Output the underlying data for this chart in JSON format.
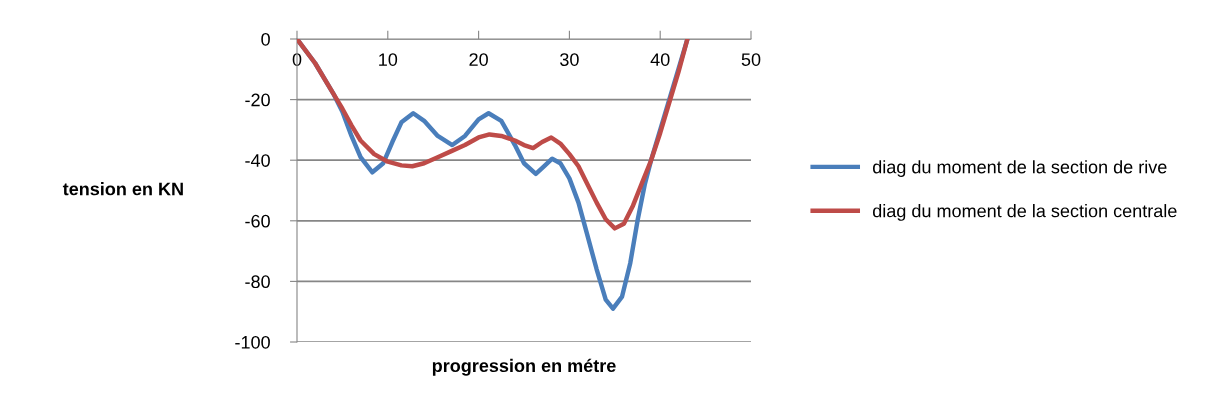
{
  "chart_data": {
    "type": "line",
    "xlabel": "progression en métre",
    "ylabel": "tension en KN",
    "xlim": [
      0,
      50
    ],
    "xticks": [
      0,
      10,
      20,
      30,
      40,
      50
    ],
    "ylim": [
      -100,
      0
    ],
    "yticks": [
      -100,
      -80,
      -60,
      -40,
      -20,
      0
    ],
    "grid": "y",
    "legend": "right",
    "marker": "none",
    "line_style": "solid",
    "series": [
      {
        "name": "diag du moment de la section de rive",
        "color": "#4a7ebb",
        "x": [
          0,
          2,
          4,
          5,
          6,
          7,
          8.3,
          9.5,
          10.5,
          11.5,
          12.8,
          14,
          15.5,
          17.1,
          18.5,
          20,
          21.1,
          22.5,
          24,
          25,
          26.3,
          27.2,
          28.1,
          29,
          30,
          31,
          32,
          33,
          34,
          34.8,
          35.8,
          36.7,
          37.5,
          38.3,
          39,
          40,
          41,
          42,
          43
        ],
        "values": [
          0,
          -8,
          -18,
          -24,
          -32,
          -39,
          -44,
          -41,
          -34,
          -27.5,
          -24.5,
          -27,
          -32,
          -35,
          -32,
          -26.5,
          -24.5,
          -27,
          -35,
          -41,
          -44.5,
          -42,
          -39.5,
          -41,
          -46,
          -54,
          -65,
          -76,
          -86,
          -89,
          -85,
          -74,
          -60,
          -48,
          -40,
          -30,
          -20,
          -10,
          0
        ]
      },
      {
        "name": "diag du moment de la section centrale",
        "color": "#be4b48",
        "x": [
          0,
          2,
          4,
          5,
          6,
          7,
          8.5,
          10,
          11.5,
          12.7,
          14,
          15.5,
          17,
          18.5,
          20,
          21.2,
          22.5,
          24,
          25,
          26,
          27,
          28,
          29,
          30,
          31,
          32,
          33,
          34,
          35,
          36,
          37,
          38,
          39,
          40,
          41,
          42,
          43
        ],
        "values": [
          0,
          -8,
          -18,
          -23,
          -28.5,
          -33.5,
          -38,
          -40.5,
          -41.7,
          -42,
          -41,
          -39,
          -37,
          -35,
          -32.5,
          -31.5,
          -32,
          -33.5,
          -35,
          -36,
          -34,
          -32.5,
          -34.5,
          -38,
          -42,
          -48,
          -54,
          -59.5,
          -62.5,
          -61,
          -55,
          -47.5,
          -40,
          -31,
          -21,
          -11,
          0
        ]
      }
    ]
  }
}
